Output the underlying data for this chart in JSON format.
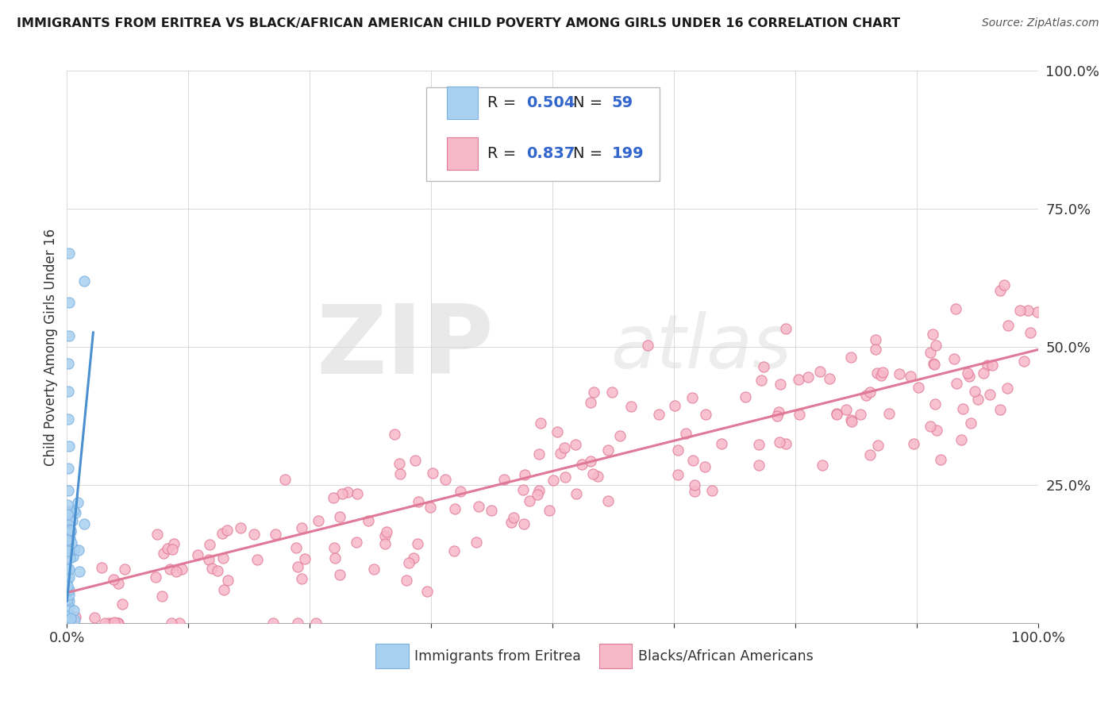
{
  "title": "IMMIGRANTS FROM ERITREA VS BLACK/AFRICAN AMERICAN CHILD POVERTY AMONG GIRLS UNDER 16 CORRELATION CHART",
  "source": "Source: ZipAtlas.com",
  "ylabel": "Child Poverty Among Girls Under 16",
  "xlim": [
    0,
    1.0
  ],
  "ylim": [
    0,
    1.0
  ],
  "ytick_values": [
    0.0,
    0.25,
    0.5,
    0.75,
    1.0
  ],
  "ytick_labels": [
    "",
    "25.0%",
    "50.0%",
    "75.0%",
    "100.0%"
  ],
  "xtick_labels_show": [
    "0.0%",
    "100.0%"
  ],
  "series1_color": "#a8d0f0",
  "series1_edge": "#7aafe0",
  "series2_color": "#f7b8c8",
  "series2_edge": "#e07898",
  "series1_R": 0.504,
  "series1_N": 59,
  "series2_R": 0.837,
  "series2_N": 199,
  "legend_label1": "Immigrants from Eritrea",
  "legend_label2": "Blacks/African Americans",
  "watermark_ZIP": "ZIP",
  "watermark_atlas": "atlas",
  "background_color": "#ffffff",
  "grid_color": "#d0d0d0",
  "title_fontsize": 11.5,
  "source_fontsize": 10,
  "label_color": "#3a3a3a",
  "value_color": "#3366cc",
  "series1_line_color": "#4a90d0",
  "series2_line_color": "#e07898",
  "series1_line_slope": 18.0,
  "series1_line_intercept": 0.04,
  "series2_line_slope": 0.44,
  "series2_line_intercept": 0.055
}
